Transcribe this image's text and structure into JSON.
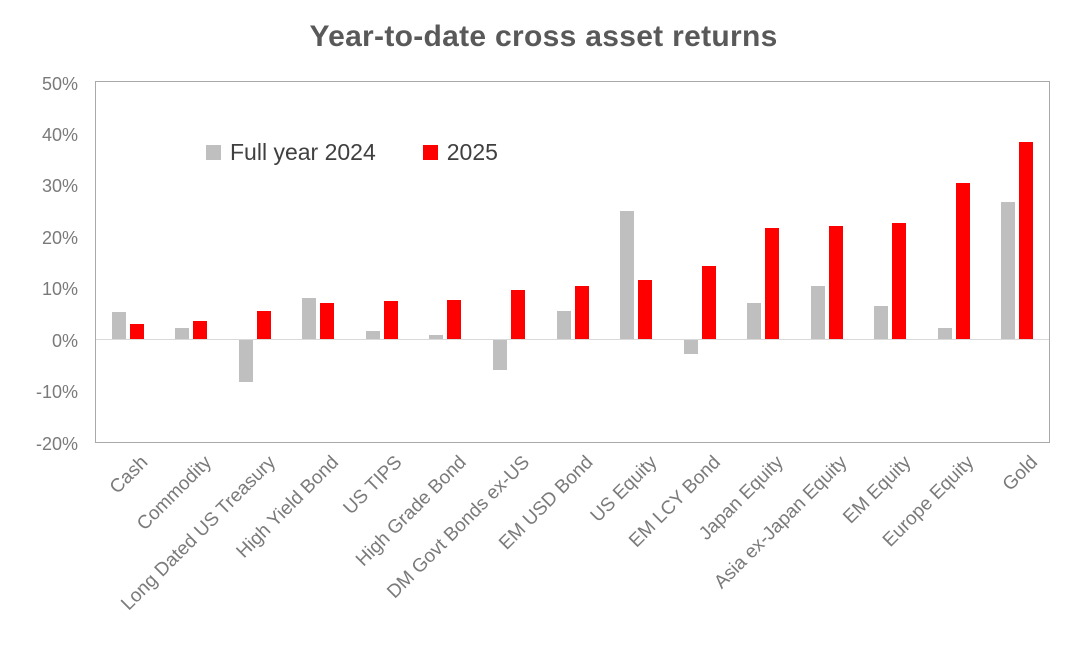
{
  "chart_data": {
    "type": "bar",
    "title": "Year-to-date cross asset returns",
    "categories": [
      "Cash",
      "Commodity",
      "Long Dated US Treasury",
      "High Yield Bond",
      "US TIPS",
      "High Grade Bond",
      "DM Govt Bonds ex-US",
      "EM USD Bond",
      "US Equity",
      "EM LCY Bond",
      "Japan Equity",
      "Asia ex-Japan Equity",
      "EM Equity",
      "Europe Equity",
      "Gold"
    ],
    "series": [
      {
        "name": "Full year 2024",
        "color": "#bfbfbf",
        "values": [
          5.2,
          2.1,
          -8.2,
          8.0,
          1.6,
          0.9,
          -5.8,
          5.4,
          24.9,
          -2.8,
          7.1,
          10.4,
          6.5,
          2.2,
          26.7
        ]
      },
      {
        "name": "2025",
        "color": "#ff0000",
        "values": [
          3.0,
          3.6,
          5.5,
          7.0,
          7.4,
          7.6,
          9.5,
          10.3,
          11.6,
          14.3,
          21.6,
          22.1,
          22.5,
          30.3,
          38.3
        ]
      }
    ],
    "ylim": [
      -20,
      50
    ],
    "yticks": [
      {
        "value": 50,
        "label": "50%"
      },
      {
        "value": 40,
        "label": "40%"
      },
      {
        "value": 30,
        "label": "30%"
      },
      {
        "value": 20,
        "label": "20%"
      },
      {
        "value": 10,
        "label": "10%"
      },
      {
        "value": 0,
        "label": "0%"
      },
      {
        "value": -10,
        "label": "-10%"
      },
      {
        "value": -20,
        "label": "-20%"
      }
    ],
    "grid": false,
    "legend_position": "inside-top-left",
    "x_label_rotation_deg": 45
  },
  "colors": {
    "title_text": "#595959",
    "axis_text": "#7a7a7a",
    "legend_text": "#404040",
    "plot_border": "#a9a9a9",
    "zero_line": "#d9d9d9",
    "series_2024": "#bfbfbf",
    "series_2025": "#ff0000",
    "background": "#ffffff"
  }
}
